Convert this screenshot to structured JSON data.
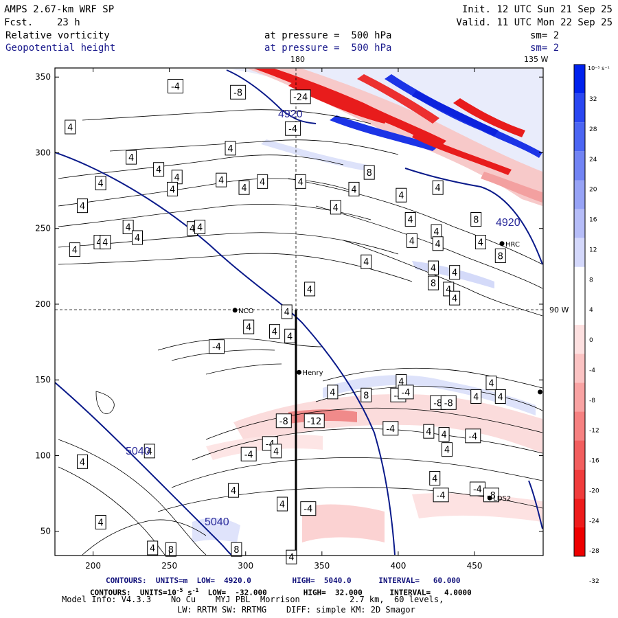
{
  "header": {
    "model_title": "AMPS 2.67-km WRF SP",
    "fcst_label": "Fcst.",
    "fcst_value": "23 h",
    "init": "Init. 12 UTC Sun 21 Sep 25",
    "valid": "Valid. 11 UTC Mon 22 Sep 25",
    "field1_name": "Relative vorticity",
    "field1_level": "at pressure =  500 hPa",
    "field1_sm": "sm= 2",
    "field2_name": "Geopotential height",
    "field2_level": "at pressure =  500 hPa",
    "field2_sm": "sm= 2"
  },
  "map": {
    "lon_labels": {
      "top_180": "180",
      "top_135": "135 W",
      "right_90": "90 W"
    },
    "x_axis": {
      "ticks": [
        200,
        250,
        300,
        350,
        400,
        450
      ],
      "min": 175,
      "max": 495
    },
    "y_axis": {
      "ticks": [
        50,
        100,
        150,
        200,
        250,
        300,
        350
      ],
      "min": 34,
      "max": 356
    },
    "stations": [
      {
        "name": "NCO",
        "x": 293,
        "y": 196
      },
      {
        "name": "Henry",
        "x": 335,
        "y": 155
      },
      {
        "name": "HRC",
        "x": 468,
        "y": 240
      },
      {
        "name": "LDS2",
        "x": 460,
        "y": 72
      },
      {
        "name": "",
        "x": 493,
        "y": 142
      }
    ],
    "height_labels": [
      "4920",
      "4920",
      "5040",
      "5040"
    ],
    "vorticity_labels": [
      {
        "t": "-4",
        "x": 254,
        "y": 344
      },
      {
        "t": "-8",
        "x": 295,
        "y": 340
      },
      {
        "t": "-24",
        "x": 336,
        "y": 337
      },
      {
        "t": "-4",
        "x": 331,
        "y": 316
      },
      {
        "t": "4",
        "x": 185,
        "y": 317
      },
      {
        "t": "4",
        "x": 225,
        "y": 297
      },
      {
        "t": "4",
        "x": 290,
        "y": 303
      },
      {
        "t": "4",
        "x": 243,
        "y": 289
      },
      {
        "t": "4",
        "x": 255,
        "y": 284
      },
      {
        "t": "4",
        "x": 205,
        "y": 280
      },
      {
        "t": "4",
        "x": 284,
        "y": 282
      },
      {
        "t": "4",
        "x": 299,
        "y": 277
      },
      {
        "t": "4",
        "x": 311,
        "y": 281
      },
      {
        "t": "4",
        "x": 336,
        "y": 281
      },
      {
        "t": "4",
        "x": 371,
        "y": 276
      },
      {
        "t": "4",
        "x": 402,
        "y": 272
      },
      {
        "t": "4",
        "x": 193,
        "y": 265
      },
      {
        "t": "4",
        "x": 252,
        "y": 276
      },
      {
        "t": "4",
        "x": 265,
        "y": 250
      },
      {
        "t": "4",
        "x": 223,
        "y": 251
      },
      {
        "t": "4",
        "x": 204,
        "y": 241
      },
      {
        "t": "4",
        "x": 270,
        "y": 251
      },
      {
        "t": "4",
        "x": 229,
        "y": 244
      },
      {
        "t": "4",
        "x": 208,
        "y": 241
      },
      {
        "t": "4",
        "x": 188,
        "y": 236
      },
      {
        "t": "4",
        "x": 359,
        "y": 264
      },
      {
        "t": "8",
        "x": 381,
        "y": 287
      },
      {
        "t": "4",
        "x": 426,
        "y": 277
      },
      {
        "t": "4",
        "x": 425,
        "y": 248
      },
      {
        "t": "4",
        "x": 408,
        "y": 256
      },
      {
        "t": "4",
        "x": 454,
        "y": 241
      },
      {
        "t": "4",
        "x": 426,
        "y": 240
      },
      {
        "t": "8",
        "x": 451,
        "y": 256
      },
      {
        "t": "4",
        "x": 423,
        "y": 224
      },
      {
        "t": "4",
        "x": 437,
        "y": 221
      },
      {
        "t": "8",
        "x": 467,
        "y": 232
      },
      {
        "t": "4",
        "x": 379,
        "y": 228
      },
      {
        "t": "4",
        "x": 409,
        "y": 242
      },
      {
        "t": "4",
        "x": 342,
        "y": 210
      },
      {
        "t": "4",
        "x": 433,
        "y": 210
      },
      {
        "t": "8",
        "x": 423,
        "y": 214
      },
      {
        "t": "4",
        "x": 437,
        "y": 204
      },
      {
        "t": "4",
        "x": 327,
        "y": 195
      },
      {
        "t": "4",
        "x": 302,
        "y": 185
      },
      {
        "t": "4",
        "x": 319,
        "y": 182
      },
      {
        "t": "4",
        "x": 329,
        "y": 179
      },
      {
        "t": "-4",
        "x": 281,
        "y": 172
      },
      {
        "t": "4",
        "x": 402,
        "y": 149
      },
      {
        "t": "4",
        "x": 357,
        "y": 142
      },
      {
        "t": "8",
        "x": 379,
        "y": 140
      },
      {
        "t": "-4",
        "x": 400,
        "y": 140
      },
      {
        "t": "-4",
        "x": 405,
        "y": 142
      },
      {
        "t": "-8",
        "x": 426,
        "y": 135
      },
      {
        "t": "-8",
        "x": 433,
        "y": 135
      },
      {
        "t": "4",
        "x": 451,
        "y": 139
      },
      {
        "t": "4",
        "x": 461,
        "y": 148
      },
      {
        "t": "4",
        "x": 467,
        "y": 139
      },
      {
        "t": "-8",
        "x": 325,
        "y": 123
      },
      {
        "t": "-12",
        "x": 345,
        "y": 123
      },
      {
        "t": "-4",
        "x": 395,
        "y": 118
      },
      {
        "t": "4",
        "x": 420,
        "y": 116
      },
      {
        "t": "4",
        "x": 430,
        "y": 114
      },
      {
        "t": "-4",
        "x": 449,
        "y": 113
      },
      {
        "t": "-4",
        "x": 316,
        "y": 108
      },
      {
        "t": "4",
        "x": 320,
        "y": 103
      },
      {
        "t": "-4",
        "x": 302,
        "y": 101
      },
      {
        "t": "4",
        "x": 237,
        "y": 103
      },
      {
        "t": "4",
        "x": 432,
        "y": 104
      },
      {
        "t": "4",
        "x": 424,
        "y": 85
      },
      {
        "t": "4",
        "x": 193,
        "y": 96
      },
      {
        "t": "-4",
        "x": 452,
        "y": 78
      },
      {
        "t": "-8",
        "x": 461,
        "y": 74
      },
      {
        "t": "4",
        "x": 292,
        "y": 77
      },
      {
        "t": "4",
        "x": 324,
        "y": 68
      },
      {
        "t": "-4",
        "x": 341,
        "y": 65
      },
      {
        "t": "-4",
        "x": 428,
        "y": 74
      },
      {
        "t": "4",
        "x": 205,
        "y": 56
      },
      {
        "t": "4",
        "x": 239,
        "y": 39
      },
      {
        "t": "8",
        "x": 251,
        "y": 38
      },
      {
        "t": "8",
        "x": 294,
        "y": 38
      },
      {
        "t": "4",
        "x": 330,
        "y": 33
      }
    ]
  },
  "colorbar": {
    "unit": "10⁻⁵ s⁻¹",
    "labels": [
      "32",
      "28",
      "24",
      "20",
      "16",
      "12",
      "8",
      "4",
      "0",
      "-4",
      "-8",
      "-12",
      "-16",
      "-20",
      "-24",
      "-28",
      "-32"
    ],
    "colors": [
      "#0022ee",
      "#2a47f2",
      "#4c66f3",
      "#7284f4",
      "#97a3f6",
      "#b6bdf8",
      "#d4d8fb",
      "#ffffff",
      "#ffffff",
      "#fde0e0",
      "#fbc3c3",
      "#f9a3a3",
      "#f68181",
      "#f25e5e",
      "#f03c3c",
      "#ee1c1c",
      "#ee0000"
    ]
  },
  "footer": {
    "line1": "CONTOURS:  UNITS=m  LOW=  4920.0         HIGH=  5040.0      INTERVAL=   60.000",
    "line2_a": "CONTOURS:  UNITS=10",
    "line2_exp1": "-5",
    "line2_b": " s",
    "line2_exp2": "-1",
    "line2_c": "  LOW=  -32.000        HIGH=  32.000      INTERVAL=   4.0000",
    "line3": "Model Info: V4.3.3    No Cu    MYJ PBL  Morrison          2.7 km,  60 levels,",
    "line4": "LW: RRTM SW: RRTMG    DIFF: simple KM: 2D Smagor"
  }
}
